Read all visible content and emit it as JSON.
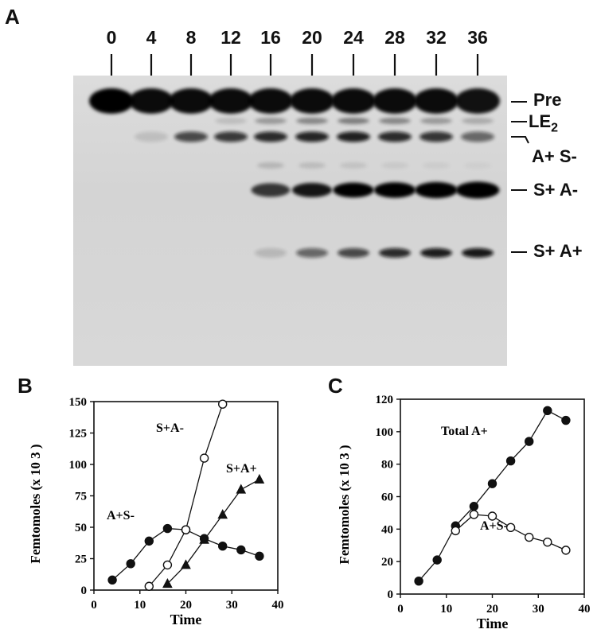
{
  "panelA": {
    "letter": "A",
    "lanes": [
      "0",
      "4",
      "8",
      "12",
      "16",
      "20",
      "24",
      "28",
      "32",
      "36"
    ],
    "bandLabels": {
      "pre": "Pre",
      "le2": "LE",
      "le2_sub": "2",
      "aPlusSMinus": "A+ S-",
      "sPlusAMinus": "S+ A-",
      "sPlusAPlus": "S+ A+"
    }
  },
  "chart_data": [
    {
      "panel": "B",
      "type": "line",
      "xlabel": "Time",
      "ylabel": "Femtomoles (x 10 3 )",
      "xlim": [
        0,
        40
      ],
      "ylim": [
        0,
        150
      ],
      "xticks": [
        "0",
        "10",
        "20",
        "30",
        "40"
      ],
      "yticks": [
        "0",
        "25",
        "50",
        "75",
        "100",
        "125",
        "150"
      ],
      "series": [
        {
          "name": "A+S-",
          "marker": "filled-circle",
          "x": [
            4,
            8,
            12,
            16,
            20,
            24,
            28,
            32,
            36
          ],
          "y": [
            8,
            21,
            39,
            49,
            48,
            41,
            35,
            32,
            27
          ]
        },
        {
          "name": "S+A-",
          "marker": "open-circle",
          "x": [
            12,
            16,
            20,
            24,
            28
          ],
          "y": [
            3,
            20,
            48,
            105,
            148
          ]
        },
        {
          "name": "S+A+",
          "marker": "filled-triangle",
          "x": [
            16,
            20,
            24,
            28,
            32,
            36
          ],
          "y": [
            5,
            20,
            40,
            60,
            80,
            88
          ]
        }
      ]
    },
    {
      "panel": "C",
      "type": "line",
      "xlabel": "Time",
      "ylabel": "Femtomoles (x 10 3 )",
      "xlim": [
        0,
        40
      ],
      "ylim": [
        0,
        120
      ],
      "xticks": [
        "0",
        "10",
        "20",
        "30",
        "40"
      ],
      "yticks": [
        "0",
        "20",
        "40",
        "60",
        "80",
        "100",
        "120"
      ],
      "series": [
        {
          "name": "Total  A+",
          "marker": "filled-circle",
          "x": [
            4,
            8,
            12,
            16,
            20,
            24,
            28,
            32,
            36
          ],
          "y": [
            8,
            21,
            42,
            54,
            68,
            82,
            94,
            113,
            107
          ]
        },
        {
          "name": "A+S-",
          "marker": "open-circle",
          "x": [
            12,
            16,
            20,
            24,
            28,
            32,
            36
          ],
          "y": [
            39,
            49,
            48,
            41,
            35,
            32,
            27
          ]
        }
      ]
    }
  ]
}
